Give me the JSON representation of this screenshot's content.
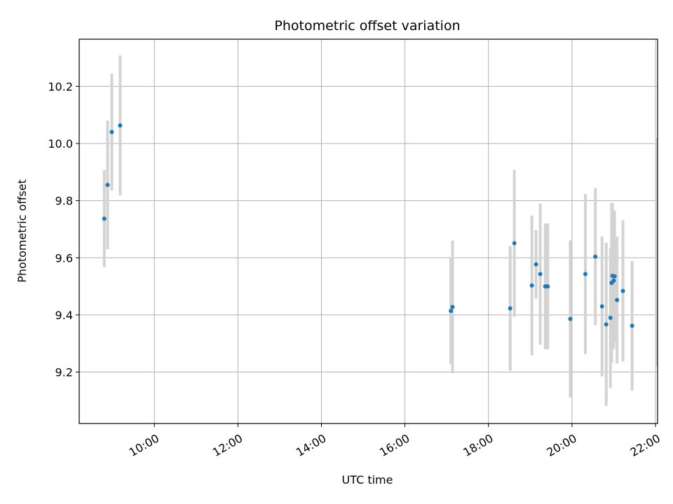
{
  "chart_data": {
    "type": "scatter",
    "title": "Photometric offset variation",
    "xlabel": "UTC time",
    "ylabel": "Photometric offset",
    "x_ticks": [
      "10:00",
      "12:00",
      "14:00",
      "16:00",
      "18:00",
      "20:00",
      "22:00"
    ],
    "x_tick_hours": [
      10,
      12,
      14,
      16,
      18,
      20,
      22
    ],
    "y_ticks": [
      "9.2",
      "9.4",
      "9.6",
      "9.8",
      "10.0",
      "10.2"
    ],
    "y_tick_values": [
      9.2,
      9.4,
      9.6,
      9.8,
      10.0,
      10.2
    ],
    "xlim_hours": [
      8.2,
      22.05
    ],
    "ylim": [
      9.02,
      10.365
    ],
    "grid": true,
    "colors": {
      "point": "#1f77b4",
      "errorbar": "#d3d3d3",
      "grid": "#b0b0b0",
      "axes": "#000000"
    },
    "series": [
      {
        "points": [
          {
            "time": "08:48",
            "hours": 8.8,
            "y": 9.737,
            "yerr": 0.17
          },
          {
            "time": "08:53",
            "hours": 8.88,
            "y": 9.855,
            "yerr": 0.225
          },
          {
            "time": "08:59",
            "hours": 8.98,
            "y": 10.04,
            "yerr": 0.205
          },
          {
            "time": "09:11",
            "hours": 9.18,
            "y": 10.063,
            "yerr": 0.245
          },
          {
            "time": "17:06",
            "hours": 17.1,
            "y": 9.414,
            "yerr": 0.185
          },
          {
            "time": "17:08",
            "hours": 17.14,
            "y": 9.428,
            "yerr": 0.232
          },
          {
            "time": "18:31",
            "hours": 18.52,
            "y": 9.423,
            "yerr": 0.218
          },
          {
            "time": "18:37",
            "hours": 18.62,
            "y": 9.651,
            "yerr": 0.257
          },
          {
            "time": "19:02",
            "hours": 19.04,
            "y": 9.503,
            "yerr": 0.245
          },
          {
            "time": "19:08",
            "hours": 19.14,
            "y": 9.577,
            "yerr": 0.12
          },
          {
            "time": "19:14",
            "hours": 19.24,
            "y": 9.543,
            "yerr": 0.247
          },
          {
            "time": "19:22",
            "hours": 19.36,
            "y": 9.5,
            "yerr": 0.22
          },
          {
            "time": "19:25",
            "hours": 19.42,
            "y": 9.5,
            "yerr": 0.22
          },
          {
            "time": "19:58",
            "hours": 19.96,
            "y": 9.386,
            "yerr": 0.275
          },
          {
            "time": "20:19",
            "hours": 20.32,
            "y": 9.543,
            "yerr": 0.28
          },
          {
            "time": "20:34",
            "hours": 20.56,
            "y": 9.604,
            "yerr": 0.24
          },
          {
            "time": "20:43",
            "hours": 20.72,
            "y": 9.43,
            "yerr": 0.245
          },
          {
            "time": "20:49",
            "hours": 20.82,
            "y": 9.367,
            "yerr": 0.285
          },
          {
            "time": "20:55",
            "hours": 20.92,
            "y": 9.39,
            "yerr": 0.245
          },
          {
            "time": "20:57",
            "hours": 20.95,
            "y": 9.512,
            "yerr": 0.28
          },
          {
            "time": "20:58",
            "hours": 20.97,
            "y": 9.537,
            "yerr": 0.255
          },
          {
            "time": "21:00",
            "hours": 21.0,
            "y": 9.52,
            "yerr": 0.24
          },
          {
            "time": "21:01",
            "hours": 21.02,
            "y": 9.535,
            "yerr": 0.23
          },
          {
            "time": "21:05",
            "hours": 21.08,
            "y": 9.452,
            "yerr": 0.222
          },
          {
            "time": "21:13",
            "hours": 21.22,
            "y": 9.484,
            "yerr": 0.247
          },
          {
            "time": "21:26",
            "hours": 21.44,
            "y": 9.362,
            "yerr": 0.227
          },
          {
            "time": "22:01",
            "hours": 22.02,
            "y": 9.62,
            "yerr": 0.4
          }
        ]
      }
    ]
  }
}
